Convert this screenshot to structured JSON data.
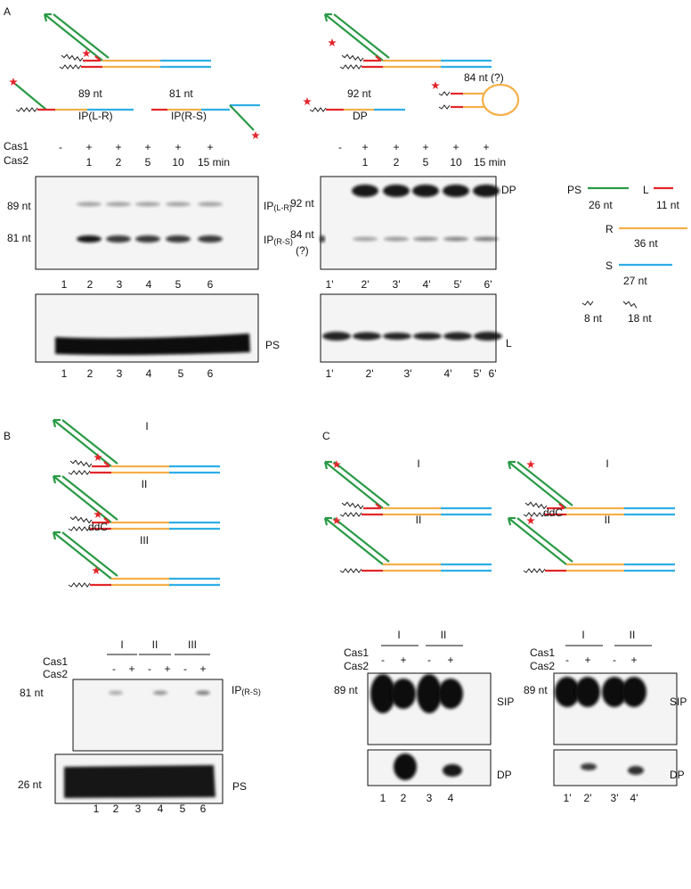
{
  "panel_a": {
    "label": "A",
    "schematic": {
      "ip_lr_length": "89 nt",
      "ip_lr": "IP(L-R)",
      "ip_rs_length": "81 nt",
      "ip_rs": "IP(R-S)",
      "dp_length": "92 nt",
      "dp": "DP",
      "hairpin_length": "84 nt (?)"
    },
    "gel_left": {
      "rows": [
        "Cas1",
        "Cas2"
      ],
      "cas_conditions": [
        "-",
        "+",
        "+",
        "+",
        "+",
        "+"
      ],
      "times": [
        "1",
        "2",
        "5",
        "10",
        "15 min"
      ],
      "markers": [
        "89 nt",
        "81 nt"
      ],
      "products": [
        {
          "main": "IP",
          "sub": "(L-R)"
        },
        {
          "main": "IP",
          "sub": "(R-S)"
        }
      ],
      "lanes": [
        "1",
        "2",
        "3",
        "4",
        "5",
        "6"
      ],
      "loading_control": "PS",
      "control_lanes": [
        "1",
        "2",
        "3",
        "4",
        "5",
        "6"
      ]
    },
    "gel_right": {
      "cas_conditions": [
        "-",
        "+",
        "+",
        "+",
        "+",
        "+"
      ],
      "times": [
        "1",
        "2",
        "5",
        "10",
        "15 min"
      ],
      "markers": [
        "92 nt",
        "84 nt",
        "(?)"
      ],
      "product": "DP",
      "lanes": [
        "1'",
        "2'",
        "3'",
        "4'",
        "5'",
        "6'"
      ],
      "loading_control": "L",
      "control_lanes": [
        "1'",
        "2'",
        "3'",
        "4'",
        "5'",
        "6'"
      ]
    },
    "legend": [
      {
        "name": "PS",
        "length": "26 nt"
      },
      {
        "name": "L",
        "length": "11 nt"
      },
      {
        "name": "R",
        "length": "36 nt"
      },
      {
        "name": "S",
        "length": "27 nt"
      },
      {
        "length": "8 nt"
      },
      {
        "length": "18 nt"
      }
    ]
  },
  "panel_b": {
    "label": "B",
    "substrates": [
      "I",
      "II",
      "III"
    ],
    "modification": "ddC",
    "groups": [
      "I",
      "II",
      "III"
    ],
    "rows": [
      "Cas1",
      "Cas2"
    ],
    "cas_conditions": [
      "-",
      "+",
      "-",
      "+",
      "-",
      "+"
    ],
    "marker": "81 nt",
    "product": {
      "main": "IP",
      "sub": "(R-S)"
    },
    "control_marker": "26 nt",
    "loading_control": "PS",
    "lanes": [
      "1",
      "2",
      "3",
      "4",
      "5",
      "6"
    ]
  },
  "panel_c": {
    "label": "C",
    "left": {
      "substrates": [
        "I",
        "II"
      ],
      "groups": [
        "I",
        "II"
      ],
      "rows": [
        "Cas1",
        "Cas2"
      ],
      "cas_conditions": [
        "-",
        "+",
        "-",
        "+"
      ],
      "marker": "89 nt",
      "product": "SIP",
      "second_product": "DP",
      "lanes": [
        "1",
        "2",
        "3",
        "4"
      ]
    },
    "right": {
      "substrates": [
        "I",
        "II"
      ],
      "modification": "ddC",
      "groups": [
        "I",
        "II"
      ],
      "rows": [
        "Cas1",
        "Cas2"
      ],
      "cas_conditions": [
        "-",
        "+",
        "-",
        "+"
      ],
      "marker": "89 nt",
      "product": "SIP",
      "second_product": "DP",
      "lanes": [
        "1'",
        "2'",
        "3'",
        "4'"
      ]
    }
  }
}
